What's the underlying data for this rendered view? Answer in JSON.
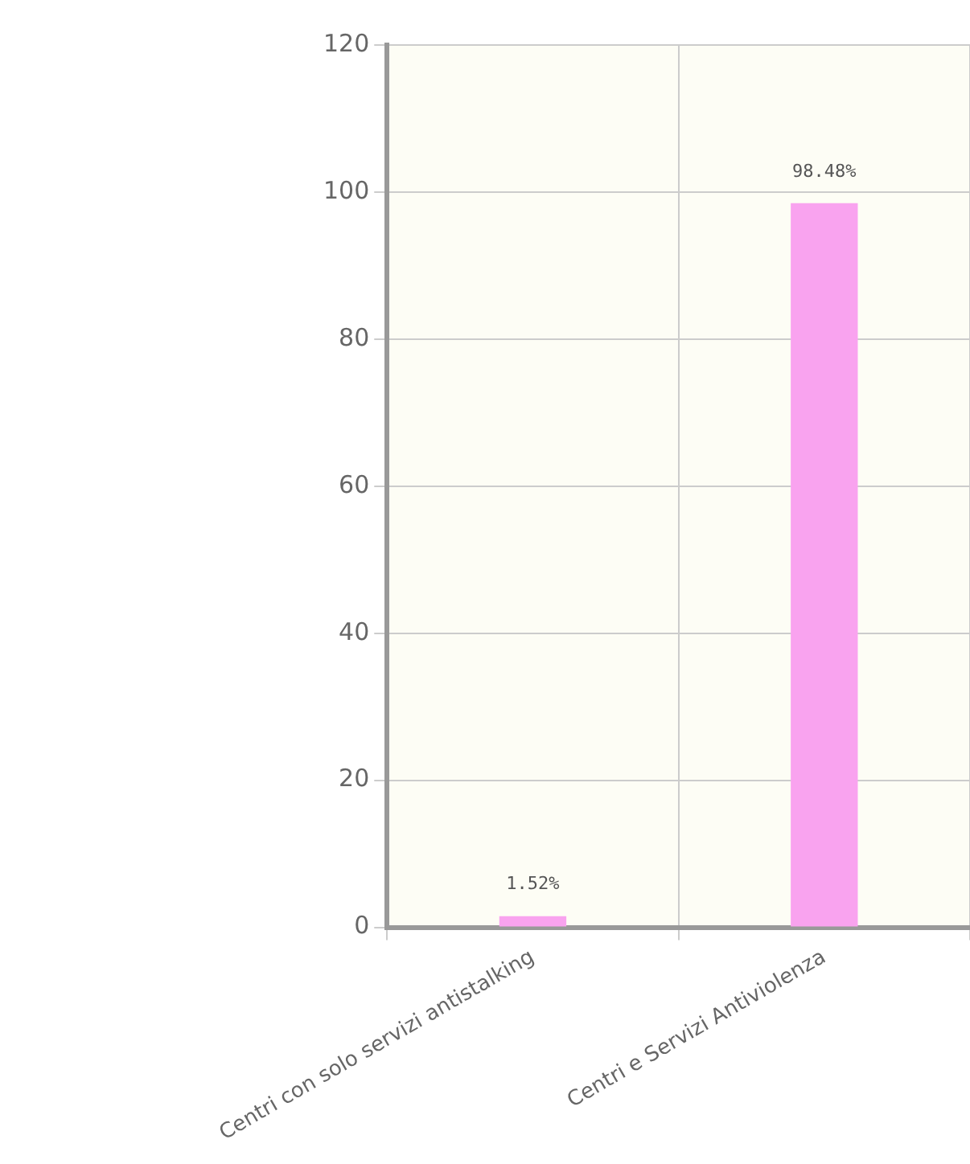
{
  "chart_data": {
    "type": "bar",
    "categories": [
      "Centri con solo servizi antistalking",
      "Centri e Servizi Antiviolenza"
    ],
    "values": [
      1.52,
      98.48
    ],
    "value_labels": [
      "1.52%",
      "98.48%"
    ],
    "color": "#f9a3ef",
    "ylim": [
      0,
      120
    ],
    "yticks": [
      0,
      20,
      40,
      60,
      80,
      100,
      120
    ],
    "grid": true
  }
}
